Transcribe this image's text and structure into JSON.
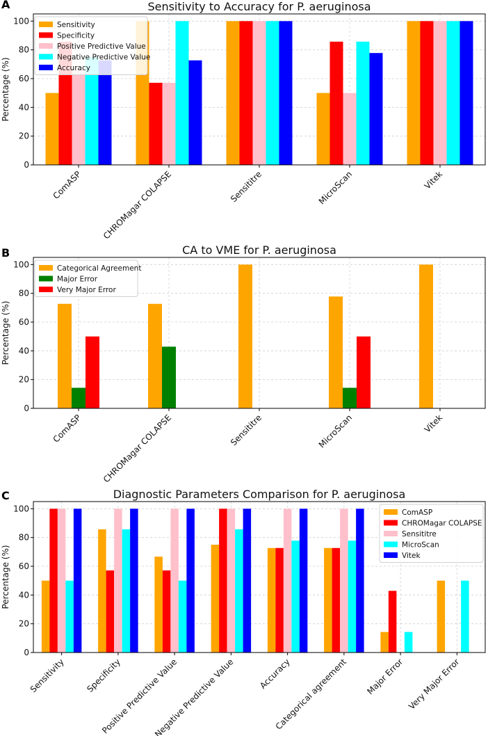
{
  "chart_data": [
    {
      "panel": "A",
      "type": "bar",
      "title": "Sensitivity to Accuracy for P. aeruginosa",
      "xlabel": "",
      "ylabel": "Percentage (%)",
      "ylim": [
        0,
        105
      ],
      "yticks": [
        0,
        20,
        40,
        60,
        80,
        100
      ],
      "grid": true,
      "legend": "top-left",
      "categories": [
        "ComASP",
        "CHROMagar COLAPSE",
        "Sensititre",
        "MicroScan",
        "Vitek"
      ],
      "series": [
        {
          "name": "Sensitivity",
          "color": "#FFA500",
          "values": [
            50,
            100,
            100,
            50,
            100
          ]
        },
        {
          "name": "Specificity",
          "color": "#FF0000",
          "values": [
            85.7,
            57.1,
            100,
            85.7,
            100
          ]
        },
        {
          "name": "Positive Predictive Value",
          "color": "#FFC0CB",
          "values": [
            66.7,
            57.1,
            100,
            50,
            100
          ]
        },
        {
          "name": "Negative Predictive Value",
          "color": "#00FFFF",
          "values": [
            75,
            100,
            100,
            85.7,
            100
          ]
        },
        {
          "name": "Accuracy",
          "color": "#0000FF",
          "values": [
            72.7,
            72.7,
            100,
            77.8,
            100
          ]
        }
      ]
    },
    {
      "panel": "B",
      "type": "bar",
      "title": "CA to VME for P. aeruginosa",
      "xlabel": "",
      "ylabel": "Percentage (%)",
      "ylim": [
        0,
        105
      ],
      "yticks": [
        0,
        20,
        40,
        60,
        80,
        100
      ],
      "grid": true,
      "legend": "top-left",
      "categories": [
        "ComASP",
        "CHROMagar COLAPSE",
        "Sensititre",
        "MicroScan",
        "Vitek"
      ],
      "series": [
        {
          "name": "Categorical Agreement",
          "color": "#FFA500",
          "values": [
            72.7,
            72.7,
            100,
            77.8,
            100
          ]
        },
        {
          "name": "Major Error",
          "color": "#008000",
          "values": [
            14.3,
            42.9,
            0,
            14.3,
            0
          ]
        },
        {
          "name": "Very Major Error",
          "color": "#FF0000",
          "values": [
            50,
            0,
            0,
            50,
            0
          ]
        }
      ]
    },
    {
      "panel": "C",
      "type": "bar",
      "title": "Diagnostic Parameters Comparison for P. aeruginosa",
      "xlabel": "",
      "ylabel": "Percentage (%)",
      "ylim": [
        0,
        105
      ],
      "yticks": [
        0,
        20,
        40,
        60,
        80,
        100
      ],
      "grid": true,
      "legend": "top-right",
      "categories": [
        "Sensitivity",
        "Specificity",
        "Positive Predictive Value",
        "Negative Predictive Value",
        "Accuracy",
        "Categorical agreement",
        "Major Error",
        "Very Major Error"
      ],
      "series": [
        {
          "name": "ComASP",
          "color": "#FFA500",
          "values": [
            50,
            85.7,
            66.7,
            75,
            72.7,
            72.7,
            14.3,
            50
          ]
        },
        {
          "name": "CHROMagar COLAPSE",
          "color": "#FF0000",
          "values": [
            100,
            57.1,
            57.1,
            100,
            72.7,
            72.7,
            42.9,
            0
          ]
        },
        {
          "name": "Sensititre",
          "color": "#FFC0CB",
          "values": [
            100,
            100,
            100,
            100,
            100,
            100,
            0,
            0
          ]
        },
        {
          "name": "MicroScan",
          "color": "#00FFFF",
          "values": [
            50,
            85.7,
            50,
            85.7,
            77.8,
            77.8,
            14.3,
            50
          ]
        },
        {
          "name": "Vitek",
          "color": "#0000FF",
          "values": [
            100,
            100,
            100,
            100,
            100,
            100,
            0,
            0
          ]
        }
      ]
    }
  ]
}
